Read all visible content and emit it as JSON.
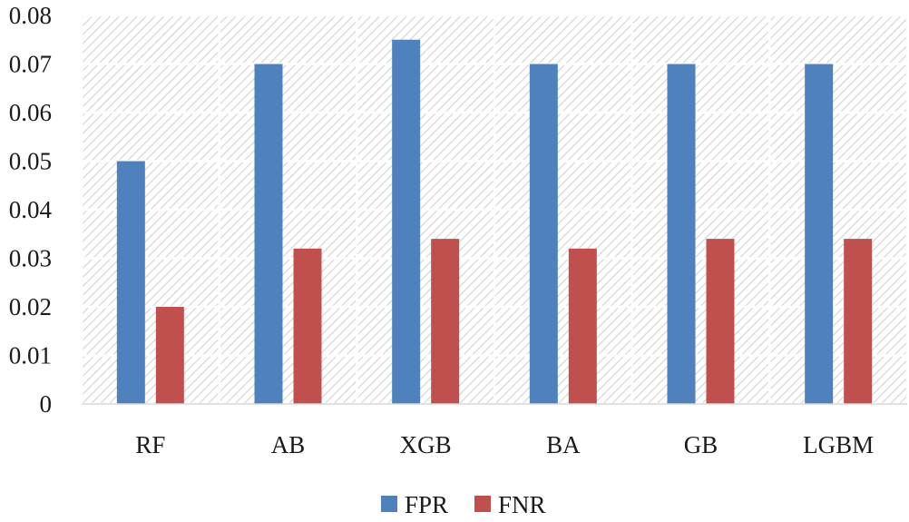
{
  "chart_data": {
    "type": "bar",
    "title": "",
    "xlabel": "",
    "ylabel": "",
    "categories": [
      "RF",
      "AB",
      "XGB",
      "BA",
      "GB",
      "LGBM"
    ],
    "series": [
      {
        "name": "FPR",
        "color": "#4f81bd",
        "values": [
          0.05,
          0.07,
          0.075,
          0.07,
          0.07,
          0.07
        ]
      },
      {
        "name": "FNR",
        "color": "#c0504d",
        "values": [
          0.02,
          0.032,
          0.034,
          0.032,
          0.034,
          0.034
        ]
      }
    ],
    "ylim": [
      0,
      0.08
    ],
    "yticks": [
      "0",
      "0.01",
      "0.02",
      "0.03",
      "0.04",
      "0.05",
      "0.06",
      "0.07",
      "0.08"
    ],
    "grid": true,
    "legend_position": "bottom-center",
    "plot_background": "diagonal-hatch"
  }
}
